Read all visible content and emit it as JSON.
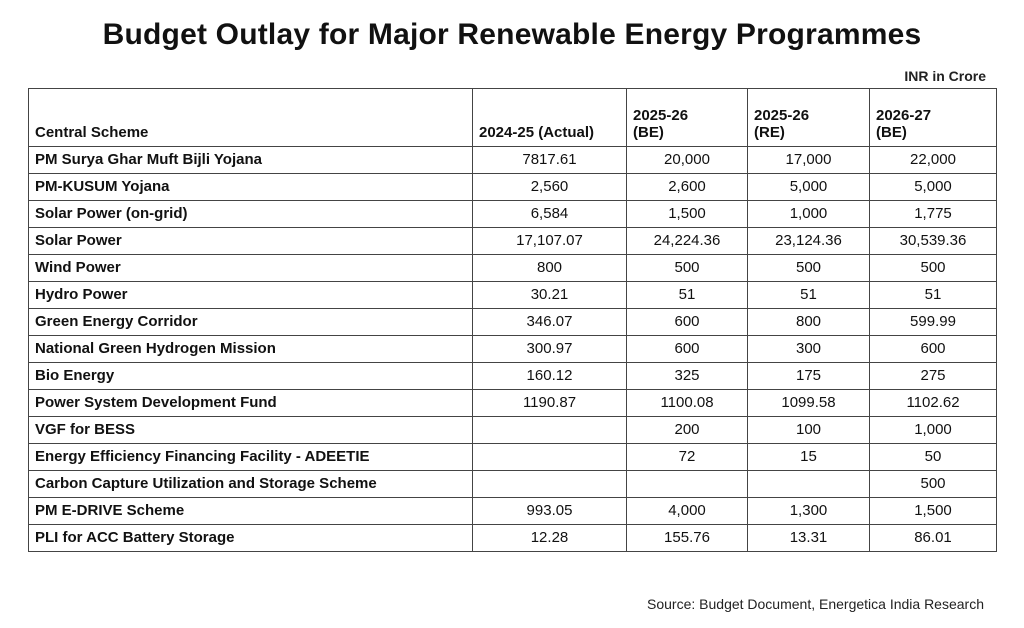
{
  "title": "Budget Outlay for Major Renewable Energy Programmes",
  "unit_note": "INR in Crore",
  "table": {
    "headers": [
      {
        "line1": "",
        "line2": "Central Scheme"
      },
      {
        "line1": "",
        "line2": "2024-25 (Actual)"
      },
      {
        "line1": "2025-26",
        "line2": "(BE)"
      },
      {
        "line1": "2025-26",
        "line2": "(RE)"
      },
      {
        "line1": "2026-27",
        "line2": "(BE)"
      }
    ],
    "rows": [
      [
        "PM Surya Ghar Muft Bijli Yojana",
        "7817.61",
        "20,000",
        "17,000",
        "22,000"
      ],
      [
        "PM-KUSUM Yojana",
        "2,560",
        "2,600",
        "5,000",
        "5,000"
      ],
      [
        "Solar Power (on-grid)",
        "6,584",
        "1,500",
        "1,000",
        "1,775"
      ],
      [
        "Solar Power",
        "17,107.07",
        "24,224.36",
        "23,124.36",
        "30,539.36"
      ],
      [
        "Wind Power",
        "800",
        "500",
        "500",
        "500"
      ],
      [
        "Hydro Power",
        "30.21",
        "51",
        "51",
        "51"
      ],
      [
        "Green Energy Corridor",
        "346.07",
        "600",
        "800",
        "599.99"
      ],
      [
        "National Green Hydrogen Mission",
        "300.97",
        "600",
        "300",
        "600"
      ],
      [
        "Bio Energy",
        "160.12",
        "325",
        "175",
        "275"
      ],
      [
        "Power System Development Fund",
        "1190.87",
        "1100.08",
        "1099.58",
        "1102.62"
      ],
      [
        "VGF for BESS",
        "",
        "200",
        "100",
        "1,000"
      ],
      [
        "Energy Efficiency Financing Facility - ADEETIE",
        "",
        "72",
        "15",
        "50"
      ],
      [
        "Carbon Capture Utilization and Storage Scheme",
        "",
        "",
        "",
        "500"
      ],
      [
        "PM E-DRIVE Scheme",
        "993.05",
        "4,000",
        "1,300",
        "1,500"
      ],
      [
        "PLI for ACC Battery Storage",
        "12.28",
        "155.76",
        "13.31",
        "86.01"
      ]
    ]
  },
  "source": "Source: Budget Document, Energetica India Research"
}
